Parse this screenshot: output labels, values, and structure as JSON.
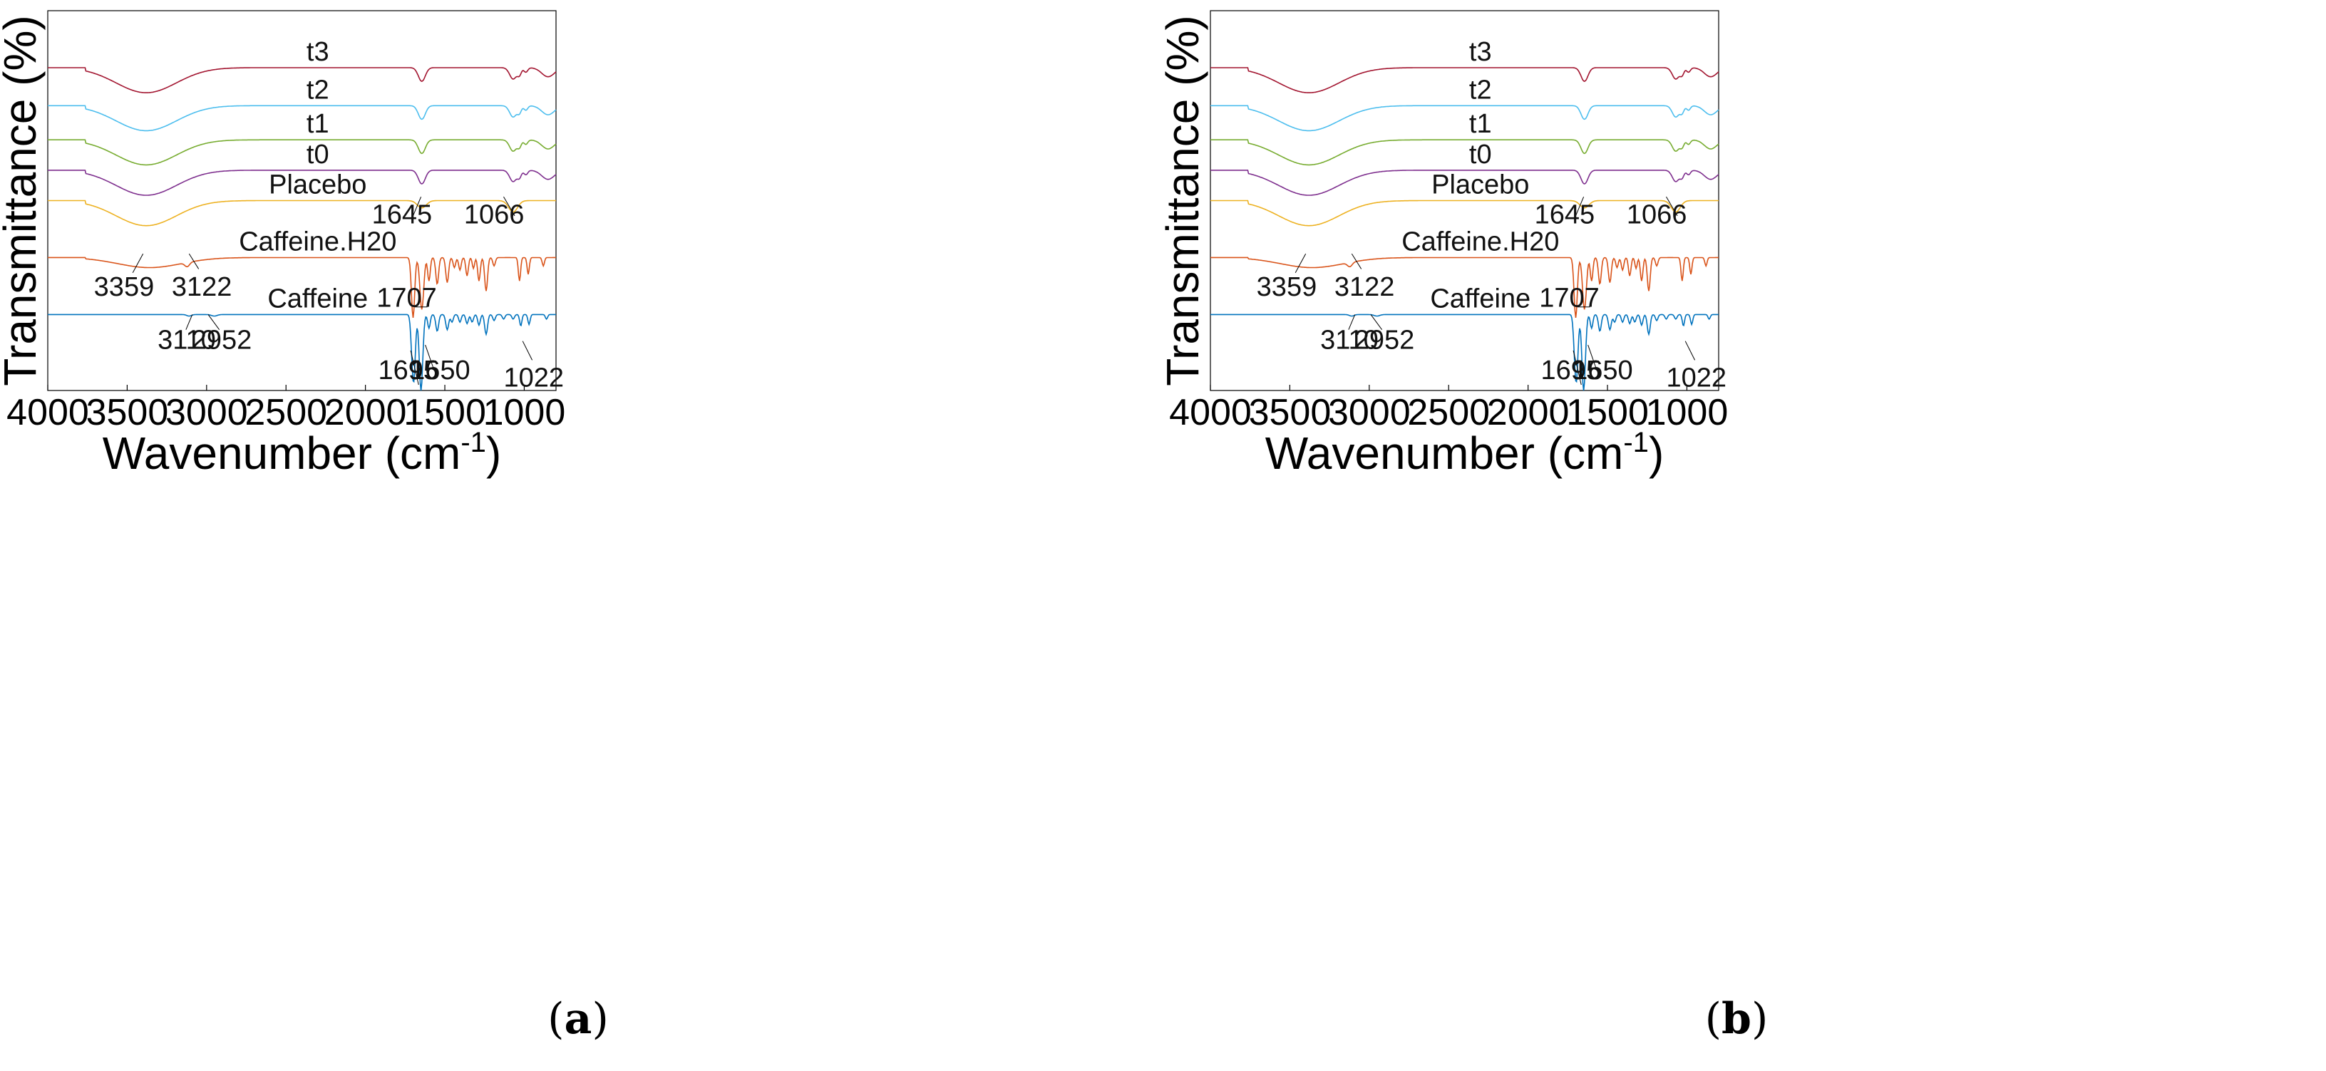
{
  "figure": {
    "panels": [
      {
        "id": "a",
        "caption_letter": "a"
      },
      {
        "id": "b",
        "caption_letter": "b"
      }
    ]
  },
  "chart_data": [
    {
      "panel": "a",
      "type": "line",
      "title": "",
      "xlabel": "Wavenumber (cm",
      "xlabel_sup": "-1",
      "xlabel_end": ")",
      "ylabel": "Transmittance (%)",
      "xlim": [
        4000,
        800
      ],
      "x_ticks": [
        4000,
        3500,
        3000,
        2500,
        2000,
        1500,
        1000
      ],
      "series": [
        {
          "name": "t3",
          "color": "#A2142F",
          "offset": 0.85,
          "scale": 0.12
        },
        {
          "name": "t2",
          "color": "#4DBEEE",
          "offset": 0.75,
          "scale": 0.12
        },
        {
          "name": "t1",
          "color": "#77AC30",
          "offset": 0.66,
          "scale": 0.12
        },
        {
          "name": "t0",
          "color": "#7E2F8E",
          "offset": 0.58,
          "scale": 0.12
        },
        {
          "name": "Placebo",
          "color": "#EDB120",
          "offset": 0.5,
          "scale": 0.12
        },
        {
          "name": "Caffeine.H20",
          "color": "#D95319",
          "offset": 0.35,
          "scale": 0.22
        },
        {
          "name": "Caffeine",
          "color": "#0072BD",
          "offset": 0.2,
          "scale": 0.2
        }
      ],
      "peak_annotations": [
        "3359",
        "3122",
        "3110",
        "2952",
        "1707",
        "1645",
        "1066",
        "1695",
        "1650",
        "1022"
      ]
    },
    {
      "panel": "b",
      "type": "line",
      "title": "",
      "xlabel": "Wavenumber (cm",
      "xlabel_sup": "-1",
      "xlabel_end": ")",
      "ylabel": "Transmittance (%)",
      "xlim": [
        4000,
        800
      ],
      "x_ticks": [
        4000,
        3500,
        3000,
        2500,
        2000,
        1500,
        1000
      ],
      "series": [
        {
          "name": "t3",
          "color": "#A2142F",
          "offset": 0.85,
          "scale": 0.12
        },
        {
          "name": "t2",
          "color": "#4DBEEE",
          "offset": 0.75,
          "scale": 0.12
        },
        {
          "name": "t1",
          "color": "#77AC30",
          "offset": 0.66,
          "scale": 0.12
        },
        {
          "name": "t0",
          "color": "#7E2F8E",
          "offset": 0.58,
          "scale": 0.12
        },
        {
          "name": "Placebo",
          "color": "#EDB120",
          "offset": 0.5,
          "scale": 0.12
        },
        {
          "name": "Caffeine.H20",
          "color": "#D95319",
          "offset": 0.35,
          "scale": 0.22
        },
        {
          "name": "Caffeine",
          "color": "#0072BD",
          "offset": 0.2,
          "scale": 0.2
        }
      ],
      "peak_annotations": [
        "3359",
        "3122",
        "3110",
        "2952",
        "1707",
        "1645",
        "1066",
        "1695",
        "1650",
        "1022"
      ]
    }
  ]
}
